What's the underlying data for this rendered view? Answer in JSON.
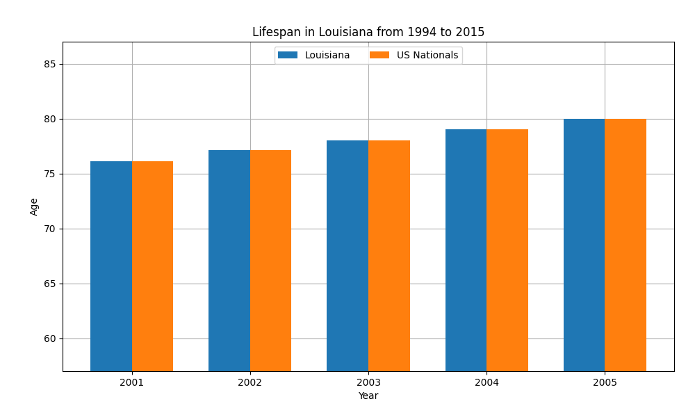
{
  "chart_data": {
    "type": "bar",
    "title": "Lifespan in Louisiana from 1994 to 2015",
    "x_label": "Year",
    "y_label": "Age",
    "categories": [
      "2001",
      "2002",
      "2003",
      "2004",
      "2005"
    ],
    "series": [
      {
        "name": "Louisiana",
        "values": [
          76.1,
          77.1,
          78.0,
          79.0,
          80.0
        ]
      },
      {
        "name": "US Nationals",
        "values": [
          76.1,
          77.1,
          78.0,
          79.0,
          80.0
        ]
      }
    ],
    "ylim": [
      57,
      87
    ],
    "yticks": [
      60,
      65,
      70,
      75,
      80,
      85
    ],
    "grid": true,
    "legend": "upper center"
  }
}
